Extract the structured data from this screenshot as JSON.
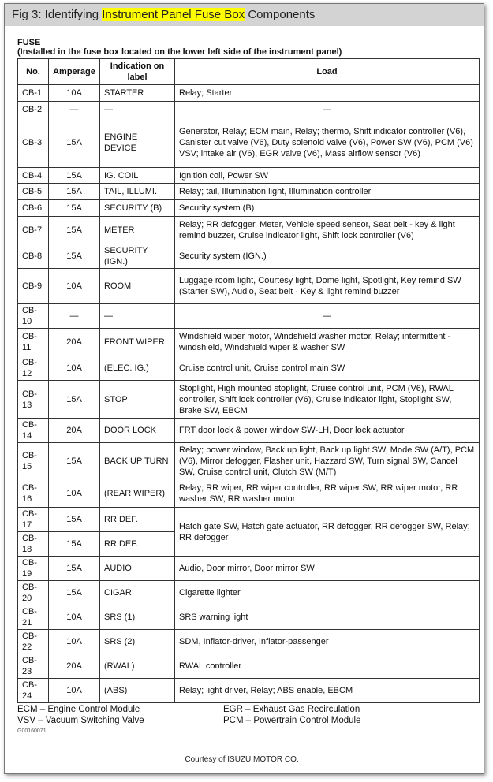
{
  "title": {
    "prefix": "Fig 3: Identifying ",
    "highlight": "Instrument Panel Fuse Box",
    "suffix": " Components",
    "highlight_color": "#ffff00"
  },
  "section": {
    "heading": "FUSE",
    "subheading": "(Installed in the fuse box located on the lower left side of the instrument panel)"
  },
  "table": {
    "headers": [
      "No.",
      "Amperage",
      "Indication on label",
      "Load"
    ],
    "rows": [
      {
        "no": "CB-1",
        "amp": "10A",
        "label": "STARTER",
        "load": "Relay; Starter"
      },
      {
        "no": "CB-2",
        "amp": "—",
        "label": "—",
        "load": "—"
      },
      {
        "no": "CB-3",
        "amp": "15A",
        "label": "ENGINE DEVICE",
        "load": "Generator, Relay; ECM main, Relay; thermo, Shift indicator controller (V6), Canister cut valve (V6), Duty solenoid valve (V6), Power SW (V6), PCM (V6) VSV; intake air (V6), EGR valve (V6), Mass airflow sensor (V6)"
      },
      {
        "no": "CB-4",
        "amp": "15A",
        "label": "IG. COIL",
        "load": "Ignition coil, Power SW"
      },
      {
        "no": "CB-5",
        "amp": "15A",
        "label": "TAIL, ILLUMI.",
        "load": "Relay; tail, Illumination light, Illumination controller"
      },
      {
        "no": "CB-6",
        "amp": "15A",
        "label": "SECURITY (B)",
        "load": "Security system (B)"
      },
      {
        "no": "CB-7",
        "amp": "15A",
        "label": "METER",
        "load": "Relay; RR defogger, Meter, Vehicle speed sensor, Seat belt - key & light remind buzzer, Cruise indicator light, Shift lock controller (V6)"
      },
      {
        "no": "CB-8",
        "amp": "15A",
        "label": "SECURITY (IGN.)",
        "load": "Security system (IGN.)"
      },
      {
        "no": "CB-9",
        "amp": "10A",
        "label": "ROOM",
        "load": "Luggage room light, Courtesy light, Dome light, Spotlight, Key remind SW (Starter SW), Audio, Seat belt · Key & light remind buzzer"
      },
      {
        "no": "CB-10",
        "amp": "—",
        "label": "—",
        "load": "—"
      },
      {
        "no": "CB-11",
        "amp": "20A",
        "label": "FRONT WIPER",
        "load": "Windshield wiper motor, Windshield washer motor, Relay; intermittent - windshield, Windshield wiper & washer SW"
      },
      {
        "no": "CB-12",
        "amp": "10A",
        "label": "(ELEC. IG.)",
        "load": "Cruise control unit, Cruise control main SW"
      },
      {
        "no": "CB-13",
        "amp": "15A",
        "label": "STOP",
        "load": "Stoplight, High mounted stoplight, Cruise control unit, PCM (V6), RWAL controller, Shift lock controller (V6), Cruise indicator light, Stoplight SW, Brake SW, EBCM"
      },
      {
        "no": "CB-14",
        "amp": "20A",
        "label": "DOOR LOCK",
        "load": "FRT door lock & power window SW-LH, Door lock actuator"
      },
      {
        "no": "CB-15",
        "amp": "15A",
        "label": "BACK UP TURN",
        "load": "Relay; power window, Back up light, Back up light SW, Mode SW (A/T), PCM (V6), Mirror defogger, Flasher unit, Hazzard SW, Turn signal SW, Cancel SW, Cruise control unit, Clutch SW (M/T)"
      },
      {
        "no": "CB-16",
        "amp": "10A",
        "label": "(REAR WIPER)",
        "load": "Relay; RR wiper, RR wiper controller, RR wiper SW, RR wiper motor, RR washer SW, RR washer motor"
      },
      {
        "no": "CB-17",
        "amp": "15A",
        "label": "RR DEF.",
        "load": "Hatch gate SW, Hatch gate actuator, RR defogger, RR defogger SW, Relay; RR defogger",
        "load_spans": 2
      },
      {
        "no": "CB-18",
        "amp": "15A",
        "label": "RR DEF."
      },
      {
        "no": "CB-19",
        "amp": "15A",
        "label": "AUDIO",
        "load": "Audio, Door mirror, Door mirror SW"
      },
      {
        "no": "CB-20",
        "amp": "15A",
        "label": "CIGAR",
        "load": "Cigarette lighter"
      },
      {
        "no": "CB-21",
        "amp": "10A",
        "label": "SRS (1)",
        "load": "SRS warning light"
      },
      {
        "no": "CB-22",
        "amp": "10A",
        "label": "SRS (2)",
        "load": "SDM, Inflator-driver, Inflator-passenger"
      },
      {
        "no": "CB-23",
        "amp": "20A",
        "label": "(RWAL)",
        "load": "RWAL controller"
      },
      {
        "no": "CB-24",
        "amp": "10A",
        "label": "(ABS)",
        "load": "Relay; light driver, Relay; ABS enable, EBCM"
      }
    ]
  },
  "footnotes": {
    "ecm": "ECM – Engine Control Module",
    "vsv": "VSV – Vacuum Switching Valve",
    "egr": "EGR – Exhaust Gas Recirculation",
    "pcm": "PCM – Powertrain Control Module"
  },
  "figure_code": "G00160071",
  "courtesy": "Courtesy of ISUZU MOTOR CO."
}
